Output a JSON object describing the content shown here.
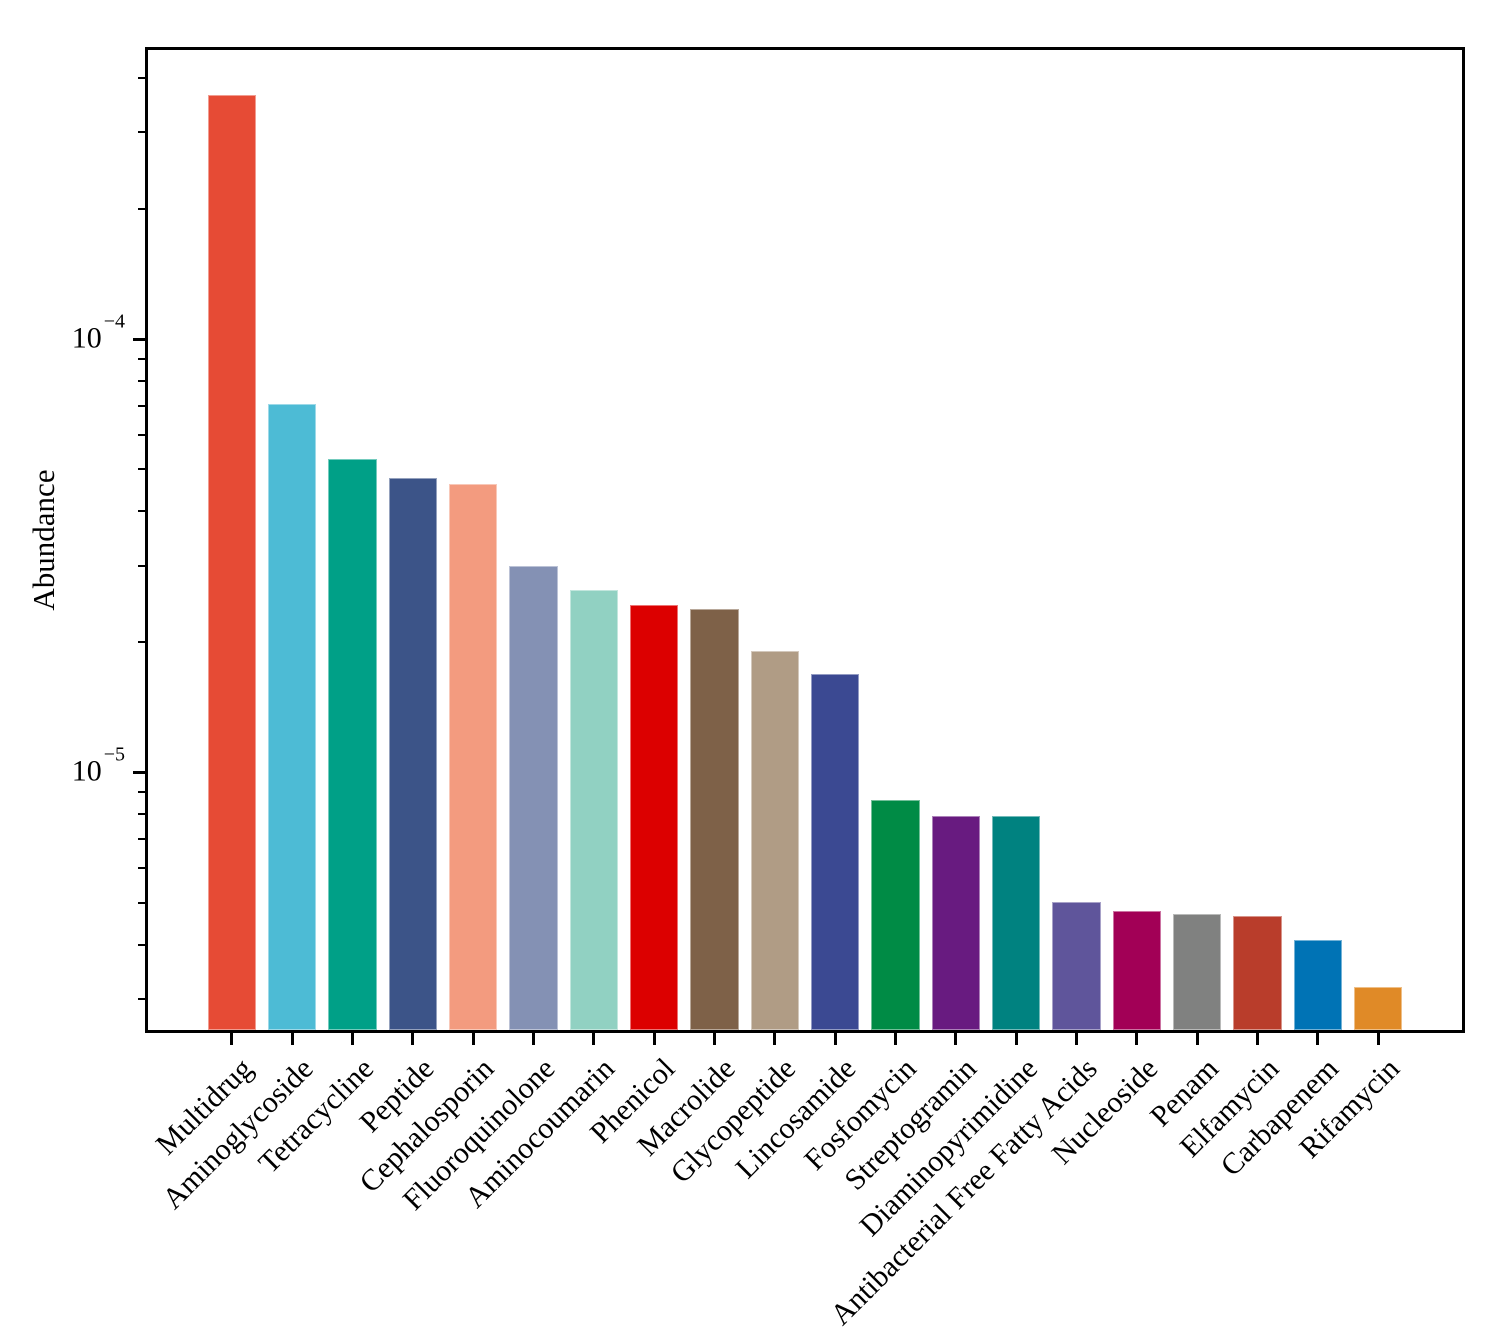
{
  "chart_data": {
    "type": "bar",
    "title": "",
    "xlabel": "",
    "ylabel": "Abundance",
    "yscale": "log",
    "ylim": [
      2.54e-06,
      0.000465
    ],
    "grid": false,
    "legend": null,
    "bar_width_fraction": 0.8,
    "ytick_labels": [
      {
        "base": "10",
        "exponent": "−4",
        "value": 0.0001
      },
      {
        "base": "10",
        "exponent": "−5",
        "value": 1e-05
      }
    ],
    "categories": [
      "Multidrug",
      "Aminoglycoside",
      "Tetracycline",
      "Peptide",
      "Cephalosporin",
      "Fluoroquinolone",
      "Aminocoumarin",
      "Phenicol",
      "Macrolide",
      "Glycopeptide",
      "Lincosamide",
      "Fosfomycin",
      "Streptogramin",
      "Diaminopyrimidine",
      "Antibacterial Free Fatty Acids",
      "Nucleoside",
      "Penam",
      "Elfamycin",
      "Carbapenem",
      "Rifamycin"
    ],
    "values": [
      0.000366,
      7.1e-05,
      5.28e-05,
      4.77e-05,
      4.62e-05,
      2.99e-05,
      2.64e-05,
      2.43e-05,
      2.38e-05,
      1.9e-05,
      1.69e-05,
      8.65e-06,
      7.94e-06,
      7.94e-06,
      5.01e-06,
      4.77e-06,
      4.7e-06,
      4.65e-06,
      4.09e-06,
      3.19e-06
    ],
    "colors": [
      "#E64B35",
      "#4DBBD5",
      "#00A087",
      "#3C5488",
      "#F39B7F",
      "#8491B4",
      "#91D1C2",
      "#DC0000",
      "#7E6148",
      "#B09C85",
      "#3B4992",
      "#008B45",
      "#681B80",
      "#008280",
      "#5F559B",
      "#A20056",
      "#808180",
      "#B93D2B",
      "#0073B5",
      "#E08A27"
    ],
    "axis_color": "#000000",
    "background_color": "#ffffff"
  }
}
